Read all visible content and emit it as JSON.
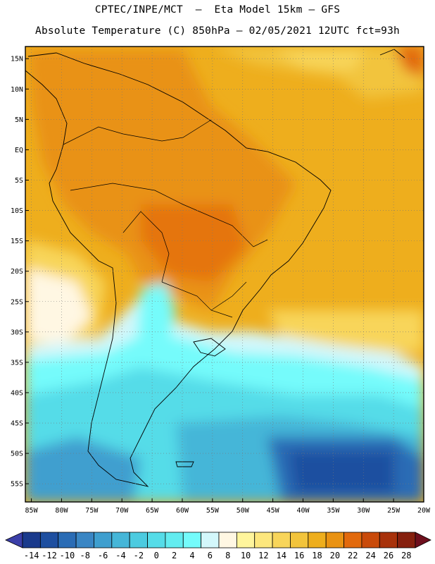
{
  "header": {
    "line1": "CPTEC/INPE/MCT  –  Eta Model 15km – GFS",
    "line2": "Absolute Temperature (C) 850hPa – 02/05/2021 12UTC fct=93h"
  },
  "map": {
    "region": "South America",
    "lat_labels": [
      "15N",
      "10N",
      "5N",
      "EQ",
      "5S",
      "10S",
      "15S",
      "20S",
      "25S",
      "30S",
      "35S",
      "40S",
      "45S",
      "50S",
      "55S"
    ],
    "lat_values": [
      15,
      10,
      5,
      0,
      -5,
      -10,
      -15,
      -20,
      -25,
      -30,
      -35,
      -40,
      -45,
      -50,
      -55
    ],
    "lon_labels": [
      "85W",
      "80W",
      "75W",
      "70W",
      "65W",
      "60W",
      "55W",
      "50W",
      "45W",
      "40W",
      "35W",
      "30W",
      "25W",
      "20W"
    ],
    "lon_values": [
      -85,
      -80,
      -75,
      -70,
      -65,
      -60,
      -55,
      -50,
      -45,
      -40,
      -35,
      -30,
      -25,
      -20
    ],
    "lon_range": [
      -86,
      -20
    ],
    "lat_range": [
      -58,
      17
    ],
    "field": "Temperature at 850hPa (C)"
  },
  "colorbar": {
    "labels": [
      "-14",
      "-12",
      "-10",
      "-8",
      "-6",
      "-4",
      "-2",
      "0",
      "2",
      "4",
      "6",
      "8",
      "10",
      "12",
      "14",
      "16",
      "18",
      "20",
      "22",
      "24",
      "26",
      "28"
    ],
    "colors": [
      "#1a3a8c",
      "#1e4fa0",
      "#2a6cb5",
      "#3a86c4",
      "#3f9fcf",
      "#45b6d8",
      "#4ccbe0",
      "#55dce8",
      "#62ecf0",
      "#74fbfb",
      "#d3f7fb",
      "#fff7e3",
      "#fff59c",
      "#fde77d",
      "#f8d55a",
      "#f2c43c",
      "#eeae1d",
      "#e99212",
      "#e2690c",
      "#c94a0a",
      "#a8320b",
      "#86200e"
    ]
  }
}
